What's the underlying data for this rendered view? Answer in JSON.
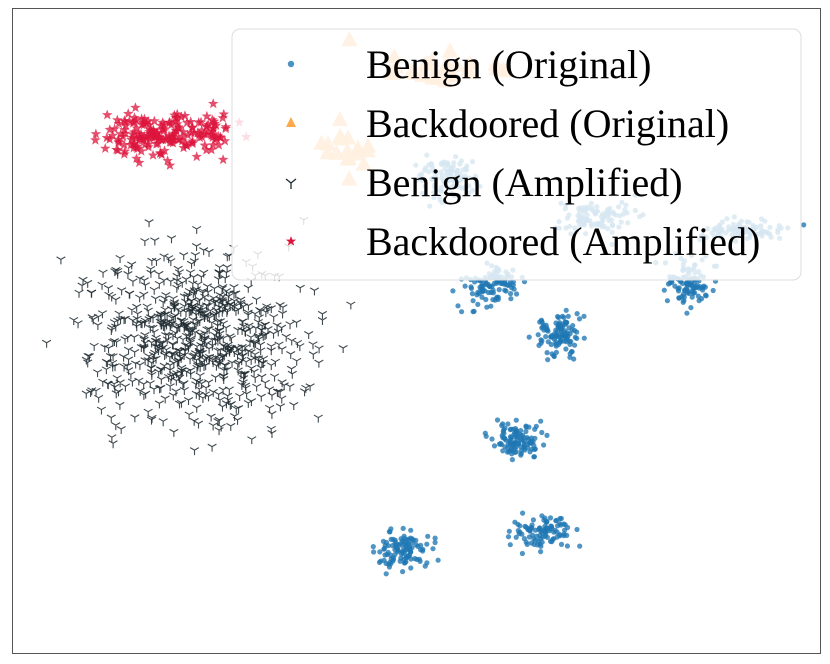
{
  "chart_data": {
    "type": "scatter",
    "title": "",
    "xlabel": "",
    "ylabel": "",
    "xlim": [
      0,
      100
    ],
    "ylim": [
      0,
      100
    ],
    "axes_visible": false,
    "grid": false,
    "legend_position": "top-right",
    "series": [
      {
        "name": "Benign (Original)",
        "marker": "circle",
        "color": "#1f77b4",
        "clusters": [
          {
            "center": [
              53.5,
              26.1
            ],
            "spread": [
              4.2,
              3.3
            ],
            "count": 110
          },
          {
            "center": [
              72.5,
              32.4
            ],
            "spread": [
              4.9,
              2.7
            ],
            "count": 100
          },
          {
            "center": [
              90.5,
              34.4
            ],
            "spread": [
              5.5,
              1.6
            ],
            "count": 90
          },
          {
            "center": [
              59.1,
              43.5
            ],
            "spread": [
              3.5,
              3.3
            ],
            "count": 110
          },
          {
            "center": [
              83.8,
              42.2
            ],
            "spread": [
              3.2,
              3.7
            ],
            "count": 100
          },
          {
            "center": [
              67.8,
              50.4
            ],
            "spread": [
              3.0,
              3.2
            ],
            "count": 110
          },
          {
            "center": [
              62.5,
              66.9
            ],
            "spread": [
              3.0,
              2.8
            ],
            "count": 110
          },
          {
            "center": [
              48.4,
              84.2
            ],
            "spread": [
              3.6,
              2.5
            ],
            "count": 110
          },
          {
            "center": [
              65.8,
              81.1
            ],
            "spread": [
              3.8,
              2.4
            ],
            "count": 100
          }
        ]
      },
      {
        "name": "Backdoored (Original)",
        "marker": "triangle",
        "color": "#ffa94d",
        "clusters": [
          {
            "center": [
              52.5,
              9.5
            ],
            "spread": [
              9.0,
              3.2
            ],
            "count": 30
          },
          {
            "center": [
              41.3,
              21.1
            ],
            "spread": [
              2.8,
              4.5
            ],
            "count": 18
          }
        ]
      },
      {
        "name": "Benign (Amplified)",
        "marker": "tri_down",
        "color": "#1f2a30",
        "clusters": [
          {
            "center": [
              23.0,
              51.0
            ],
            "spread": [
              13.0,
              12.5
            ],
            "count": 720
          }
        ]
      },
      {
        "name": "Backdoored (Amplified)",
        "marker": "star",
        "color": "#dc143c",
        "clusters": [
          {
            "center": [
              18.8,
              19.5
            ],
            "spread": [
              8.5,
              3.6
            ],
            "count": 200
          }
        ]
      }
    ]
  }
}
